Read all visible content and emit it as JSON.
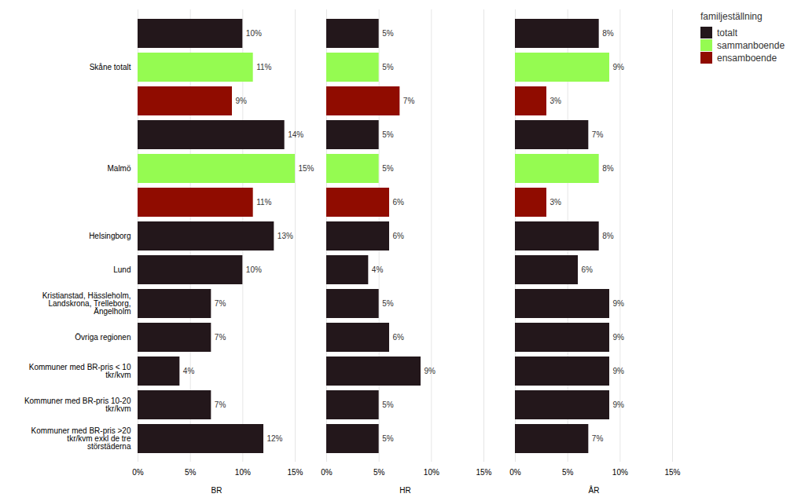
{
  "chart_data": [
    {
      "type": "bar",
      "orientation": "horizontal",
      "xlabel": "BR",
      "categories": [
        "Skåne totalt",
        "Malmö",
        "Helsingborg",
        "Lund",
        "Kristianstad, Hässleholm,\nLandskrona, Trelleborg,\nÄngelholm",
        "Övriga regionen",
        "Kommuner med BR-pris < 10\ntkr/kvm",
        "Kommuner med BR-pris 10-20\ntkr/kvm",
        "Kommuner med BR-pris >20\ntkr/kvm exkl de tre\nstörstäderna"
      ],
      "series": [
        {
          "name": "totalt",
          "values": [
            10,
            14,
            13,
            10,
            7,
            7,
            4,
            7,
            12
          ],
          "value_labels": [
            "10%",
            "14%",
            "13%",
            "10%",
            "7%",
            "7%",
            "4%",
            "7%",
            "12%"
          ]
        },
        {
          "name": "sammanboende",
          "values": [
            11,
            15,
            null,
            null,
            null,
            null,
            null,
            null,
            null
          ],
          "value_labels": [
            "11%",
            "15%",
            null,
            null,
            null,
            null,
            null,
            null,
            null
          ]
        },
        {
          "name": "ensamboende",
          "values": [
            9,
            11,
            null,
            null,
            null,
            null,
            null,
            null,
            null
          ],
          "value_labels": [
            "9%",
            "11%",
            null,
            null,
            null,
            null,
            null,
            null,
            null
          ]
        }
      ],
      "xlim": [
        0,
        15
      ],
      "xticks": [
        {
          "value": 0,
          "label": "0%"
        },
        {
          "value": 5,
          "label": "5%"
        },
        {
          "value": 10,
          "label": "10%"
        },
        {
          "value": 15,
          "label": "15%"
        }
      ],
      "grid": true,
      "data_labels": true
    },
    {
      "type": "bar",
      "orientation": "horizontal",
      "xlabel": "HR",
      "categories": [
        "Skåne totalt",
        "Malmö",
        "Helsingborg",
        "Lund",
        "Kristianstad, Hässleholm,\nLandskrona, Trelleborg,\nÄngelholm",
        "Övriga regionen",
        "Kommuner med BR-pris < 10\ntkr/kvm",
        "Kommuner med BR-pris 10-20\ntkr/kvm",
        "Kommuner med BR-pris >20\ntkr/kvm exkl de tre\nstörstäderna"
      ],
      "series": [
        {
          "name": "totalt",
          "values": [
            5,
            5,
            6,
            4,
            5,
            6,
            9,
            5,
            5
          ],
          "value_labels": [
            "5%",
            "5%",
            "6%",
            "4%",
            "5%",
            "6%",
            "9%",
            "5%",
            "5%"
          ]
        },
        {
          "name": "sammanboende",
          "values": [
            5,
            5,
            null,
            null,
            null,
            null,
            null,
            null,
            null
          ],
          "value_labels": [
            "5%",
            "5%",
            null,
            null,
            null,
            null,
            null,
            null,
            null
          ]
        },
        {
          "name": "ensamboende",
          "values": [
            7,
            6,
            null,
            null,
            null,
            null,
            null,
            null,
            null
          ],
          "value_labels": [
            "7%",
            "6%",
            null,
            null,
            null,
            null,
            null,
            null,
            null
          ]
        }
      ],
      "xlim": [
        0,
        15
      ],
      "xticks": [
        {
          "value": 0,
          "label": "0%"
        },
        {
          "value": 5,
          "label": "5%"
        },
        {
          "value": 10,
          "label": "10%"
        },
        {
          "value": 15,
          "label": "15%"
        }
      ],
      "grid": true,
      "data_labels": true,
      "tick_labels": "x"
    },
    {
      "type": "bar",
      "orientation": "horizontal",
      "xlabel": "ÅR",
      "categories": [
        "Skåne totalt",
        "Malmö",
        "Helsingborg",
        "Lund",
        "Kristianstad, Hässleholm,\nLandskrona, Trelleborg,\nÄngelholm",
        "Övriga regionen",
        "Kommuner med BR-pris < 10\ntkr/kvm",
        "Kommuner med BR-pris 10-20\ntkr/kvm",
        "Kommuner med BR-pris >20\ntkr/kvm exkl de tre\nstörstäderna"
      ],
      "series": [
        {
          "name": "totalt",
          "values": [
            8,
            7,
            8,
            6,
            9,
            9,
            9,
            9,
            7
          ],
          "value_labels": [
            "8%",
            "7%",
            "8%",
            "6%",
            "9%",
            "9%",
            "9%",
            "9%",
            "7%"
          ]
        },
        {
          "name": "sammanboende",
          "values": [
            9,
            8,
            null,
            null,
            null,
            null,
            null,
            null,
            null
          ],
          "value_labels": [
            "9%",
            "8%",
            null,
            null,
            null,
            null,
            null,
            null,
            null
          ]
        },
        {
          "name": "ensamboende",
          "values": [
            3,
            3,
            null,
            null,
            null,
            null,
            null,
            null,
            null
          ],
          "value_labels": [
            "3%",
            "3%",
            null,
            null,
            null,
            null,
            null,
            null,
            null
          ]
        }
      ],
      "xlim": [
        0,
        15
      ],
      "xticks": [
        {
          "value": 0,
          "label": "0%"
        },
        {
          "value": 5,
          "label": "5%"
        },
        {
          "value": 10,
          "label": "10%"
        },
        {
          "value": 15,
          "label": "15%"
        }
      ],
      "grid": true,
      "data_labels": true,
      "tick_labels": "x",
      "legend": "right",
      "legend_title": "familjeställning"
    }
  ]
}
